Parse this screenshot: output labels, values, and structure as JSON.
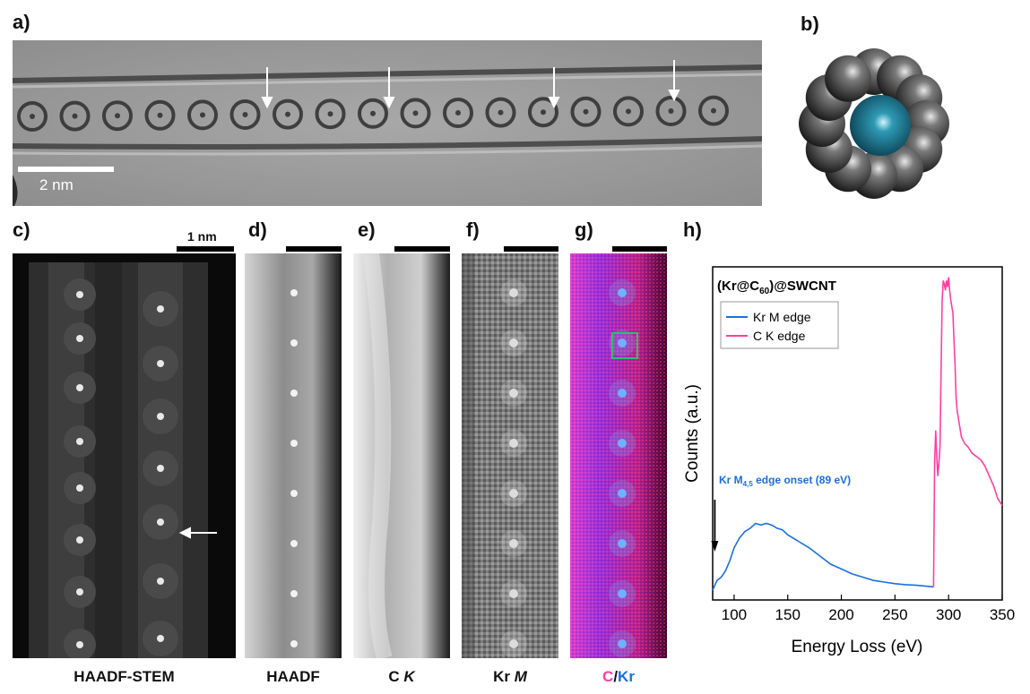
{
  "labels": {
    "a": "a)",
    "b": "b)",
    "c": "c)",
    "d": "d)",
    "e": "e)",
    "f": "f)",
    "g": "g)",
    "h": "h)"
  },
  "panel_a": {
    "scale_text": "2 nm"
  },
  "panel_c": {
    "scale_text": "1 nm",
    "caption": "HAADF-STEM"
  },
  "panel_d": {
    "caption": "HAADF"
  },
  "panel_e": {
    "caption_main": "C ",
    "caption_italic": "K"
  },
  "panel_f": {
    "caption_main": "Kr ",
    "caption_italic": "M"
  },
  "panel_g": {
    "caption_c": "C",
    "caption_sep": "/",
    "caption_kr": "Kr"
  },
  "colors": {
    "carbon_pink": "#ff3fa0",
    "krypton_blue": "#1a6fe0",
    "kr_model": "#1e7f96"
  },
  "chart_data": {
    "type": "line",
    "title": "(Kr@C60)@SWCNT",
    "title_parts": {
      "main": "(Kr@C",
      "sub": "60",
      "tail": ")@SWCNT"
    },
    "xlabel": "Energy Loss (eV)",
    "ylabel": "Counts (a.u.)",
    "xlim": [
      80,
      350
    ],
    "ylim": [
      0,
      1
    ],
    "xticks": [
      100,
      150,
      200,
      250,
      300,
      350
    ],
    "legend_position": "top-left",
    "annotation": {
      "main": "Kr M",
      "sub": "4,5",
      "tail": " edge onset (89 eV)",
      "arrow_x": 82
    },
    "series": [
      {
        "name": "Kr M edge",
        "color": "#1a6fe0",
        "x": [
          80,
          84,
          88,
          92,
          96,
          100,
          105,
          110,
          115,
          120,
          125,
          130,
          135,
          140,
          145,
          150,
          160,
          170,
          180,
          190,
          200,
          210,
          220,
          230,
          240,
          250,
          260,
          270,
          280,
          286
        ],
        "y": [
          0.03,
          0.06,
          0.07,
          0.09,
          0.12,
          0.16,
          0.19,
          0.21,
          0.22,
          0.235,
          0.23,
          0.235,
          0.23,
          0.22,
          0.215,
          0.2,
          0.18,
          0.16,
          0.135,
          0.11,
          0.095,
          0.08,
          0.07,
          0.06,
          0.055,
          0.05,
          0.047,
          0.045,
          0.042,
          0.04
        ]
      },
      {
        "name": "C K edge",
        "color": "#ff3fa0",
        "x": [
          286,
          287,
          288,
          289,
          290,
          291,
          292,
          293,
          294,
          295,
          296,
          297,
          298,
          299,
          300,
          301,
          302,
          303,
          304,
          305,
          306,
          307,
          308,
          309,
          310,
          312,
          315,
          318,
          322,
          326,
          330,
          334,
          338,
          342,
          346,
          350
        ],
        "y": [
          0.04,
          0.42,
          0.52,
          0.44,
          0.38,
          0.42,
          0.47,
          0.7,
          0.92,
          0.98,
          0.97,
          0.95,
          0.98,
          0.96,
          0.99,
          0.95,
          0.92,
          0.9,
          0.88,
          0.8,
          0.72,
          0.62,
          0.58,
          0.56,
          0.54,
          0.5,
          0.48,
          0.47,
          0.45,
          0.44,
          0.43,
          0.41,
          0.38,
          0.35,
          0.31,
          0.29
        ]
      }
    ]
  }
}
